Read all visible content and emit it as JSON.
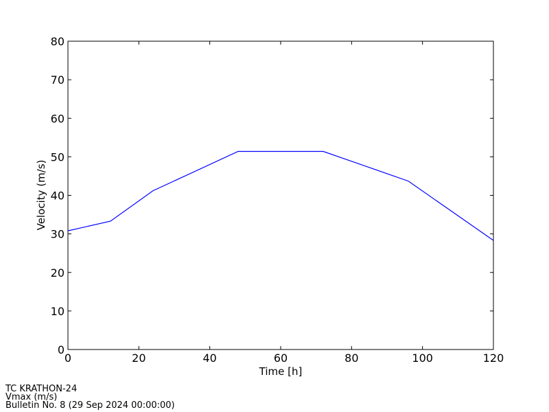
{
  "chart_data": {
    "type": "line",
    "x": [
      0,
      12,
      24,
      48,
      72,
      96,
      120
    ],
    "series": [
      {
        "color": "#0000ff",
        "values": [
          30.8,
          33.3,
          41.2,
          51.4,
          51.4,
          43.7,
          28.3
        ]
      }
    ],
    "xlabel": "Time [h]",
    "ylabel": "Velocity (m/s)",
    "xlim": [
      0,
      120
    ],
    "xticks": [
      0,
      20,
      40,
      60,
      80,
      100,
      120
    ],
    "ylim": [
      0,
      80
    ],
    "yticks": [
      0,
      10,
      20,
      30,
      40,
      50,
      60,
      70,
      80
    ],
    "annotations": [
      "TC KRATHON-24",
      "Vmax (m/s)",
      "Bulletin No. 8 (29 Sep 2024  00:00:00)"
    ]
  }
}
